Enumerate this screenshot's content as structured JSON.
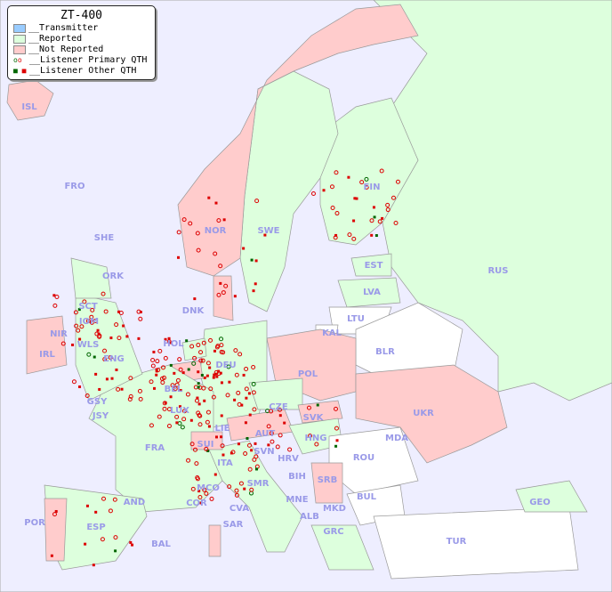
{
  "legend": {
    "title": "ZT-400",
    "items": [
      {
        "label": "__Transmitter",
        "color": "#99ccff"
      },
      {
        "label": "__Reported",
        "color": "#ddffdd"
      },
      {
        "label": "__Not Reported",
        "color": "#ffcccc"
      },
      {
        "label": "__Listener Primary QTH",
        "colors": [
          "#006600",
          "#dd0000"
        ]
      },
      {
        "label": "__Listener Other QTH",
        "colors": [
          "#006600",
          "#dd0000"
        ]
      }
    ]
  },
  "colors": {
    "sea": "#eeeeff",
    "reported": "#ddffdd",
    "not_reported": "#ffcccc",
    "no_data": "#ffffff",
    "label": "#9a9ae8"
  },
  "countries": [
    {
      "code": "ISL",
      "status": "not_reported"
    },
    {
      "code": "FRO",
      "status": "none"
    },
    {
      "code": "SHE",
      "status": "none"
    },
    {
      "code": "ORK",
      "status": "none"
    },
    {
      "code": "NOR",
      "status": "not_reported"
    },
    {
      "code": "SWE",
      "status": "reported"
    },
    {
      "code": "FIN",
      "status": "reported"
    },
    {
      "code": "EST",
      "status": "reported"
    },
    {
      "code": "LVA",
      "status": "reported"
    },
    {
      "code": "LTU",
      "status": "none"
    },
    {
      "code": "KAL",
      "status": "none"
    },
    {
      "code": "RUS",
      "status": "reported"
    },
    {
      "code": "BLR",
      "status": "none"
    },
    {
      "code": "DNK",
      "status": "not_reported"
    },
    {
      "code": "HOL",
      "status": "reported"
    },
    {
      "code": "BEL",
      "status": "not_reported"
    },
    {
      "code": "LUX",
      "status": "reported"
    },
    {
      "code": "DEU",
      "status": "reported"
    },
    {
      "code": "POL",
      "status": "not_reported"
    },
    {
      "code": "CZE",
      "status": "reported"
    },
    {
      "code": "SVK",
      "status": "not_reported"
    },
    {
      "code": "UKR",
      "status": "not_reported"
    },
    {
      "code": "MDA",
      "status": "not_reported"
    },
    {
      "code": "ROU",
      "status": "none"
    },
    {
      "code": "HNG",
      "status": "reported"
    },
    {
      "code": "AUT",
      "status": "not_reported"
    },
    {
      "code": "SUI",
      "status": "not_reported"
    },
    {
      "code": "LIE",
      "status": "reported"
    },
    {
      "code": "FRA",
      "status": "reported"
    },
    {
      "code": "ITA",
      "status": "reported"
    },
    {
      "code": "SVN",
      "status": "reported"
    },
    {
      "code": "HRV",
      "status": "reported"
    },
    {
      "code": "BIH",
      "status": "reported"
    },
    {
      "code": "SRB",
      "status": "not_reported"
    },
    {
      "code": "MNE",
      "status": "reported"
    },
    {
      "code": "ALB",
      "status": "reported"
    },
    {
      "code": "MKD",
      "status": "none"
    },
    {
      "code": "GRC",
      "status": "reported"
    },
    {
      "code": "BUL",
      "status": "none"
    },
    {
      "code": "TUR",
      "status": "none"
    },
    {
      "code": "GEO",
      "status": "reported"
    },
    {
      "code": "COR",
      "status": "reported"
    },
    {
      "code": "SAR",
      "status": "not_reported"
    },
    {
      "code": "MCO",
      "status": "reported"
    },
    {
      "code": "SMR",
      "status": "reported"
    },
    {
      "code": "CVA",
      "status": "reported"
    },
    {
      "code": "ESP",
      "status": "reported"
    },
    {
      "code": "POR",
      "status": "not_reported"
    },
    {
      "code": "AND",
      "status": "reported"
    },
    {
      "code": "BAL",
      "status": "not_reported"
    },
    {
      "code": "GSY",
      "status": "reported"
    },
    {
      "code": "JSY",
      "status": "reported"
    },
    {
      "code": "IRL",
      "status": "not_reported"
    },
    {
      "code": "NIR",
      "status": "not_reported"
    },
    {
      "code": "IOM",
      "status": "reported"
    },
    {
      "code": "WLS",
      "status": "reported"
    },
    {
      "code": "ENG",
      "status": "reported"
    },
    {
      "code": "SCT",
      "status": "reported"
    }
  ]
}
